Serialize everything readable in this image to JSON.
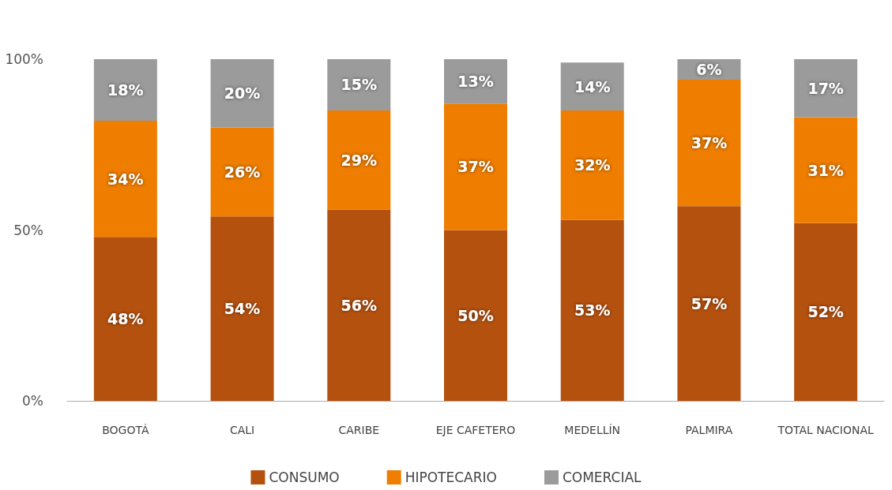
{
  "chart_data": {
    "type": "bar",
    "stacked": true,
    "categories": [
      "BOGOTÁ",
      "CALI",
      "CARIBE",
      "EJE CAFETERO",
      "MEDELLÍN",
      "PALMIRA",
      "TOTAL NACIONAL"
    ],
    "series": [
      {
        "name": "CONSUMO",
        "color": "#b5510f",
        "values": [
          48,
          54,
          56,
          50,
          53,
          57,
          52
        ],
        "value_labels": [
          "48%",
          "54%",
          "56%",
          "50%",
          "53%",
          "57%",
          "52%"
        ]
      },
      {
        "name": "HIPOTECARIO",
        "color": "#ef7d00",
        "values": [
          34,
          26,
          29,
          37,
          32,
          37,
          31
        ],
        "value_labels": [
          "34%",
          "26%",
          "29%",
          "37%",
          "32%",
          "37%",
          "31%"
        ]
      },
      {
        "name": "COMERCIAL",
        "color": "#9b9b9b",
        "values": [
          18,
          20,
          15,
          13,
          14,
          6,
          17
        ],
        "value_labels": [
          "18%",
          "20%",
          "15%",
          "13%",
          "14%",
          "6%",
          "17%"
        ]
      }
    ],
    "ylim": [
      0,
      100
    ],
    "yticks": [
      {
        "value": 0,
        "label": "0%"
      },
      {
        "value": 50,
        "label": "50%"
      },
      {
        "value": 100,
        "label": "100%"
      }
    ],
    "legend": "bottom"
  }
}
